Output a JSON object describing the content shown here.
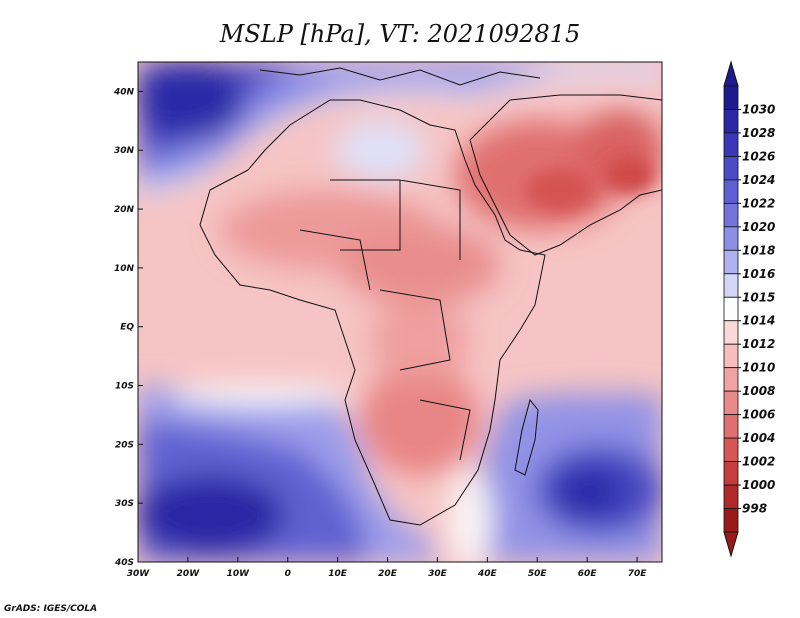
{
  "title": "MSLP [hPa], VT: 2021092815",
  "credit": "GrADS: IGES/COLA",
  "map": {
    "lon_range": [
      -30,
      75
    ],
    "lat_range": [
      -40,
      45
    ],
    "lon_ticks": [
      "30W",
      "20W",
      "10W",
      "0",
      "10E",
      "20E",
      "30E",
      "40E",
      "50E",
      "60E",
      "70E"
    ],
    "lon_tick_values": [
      -30,
      -20,
      -10,
      0,
      10,
      20,
      30,
      40,
      50,
      60,
      70
    ],
    "lat_ticks": [
      "40N",
      "30N",
      "20N",
      "10N",
      "EQ",
      "10S",
      "20S",
      "30S",
      "40S"
    ],
    "lat_tick_values": [
      40,
      30,
      20,
      10,
      0,
      -10,
      -20,
      -30,
      -40
    ]
  },
  "colorbar": {
    "levels": [
      "1030",
      "1028",
      "1026",
      "1024",
      "1022",
      "1020",
      "1018",
      "1016",
      "1015",
      "1014",
      "1012",
      "1010",
      "1008",
      "1006",
      "1004",
      "1002",
      "1000",
      "998"
    ],
    "colors": [
      "#1e1b8e",
      "#2a27a6",
      "#3a38b8",
      "#4b4bc6",
      "#5e5fd2",
      "#7475dc",
      "#8d8fe6",
      "#aeb0ef",
      "#d4d5f7",
      "#fdfdfd",
      "#fbd8d8",
      "#f7bdbd",
      "#f0a3a3",
      "#e88a8a",
      "#e07070",
      "#d65656",
      "#c73d3d",
      "#b12828",
      "#9a1a1a"
    ]
  }
}
